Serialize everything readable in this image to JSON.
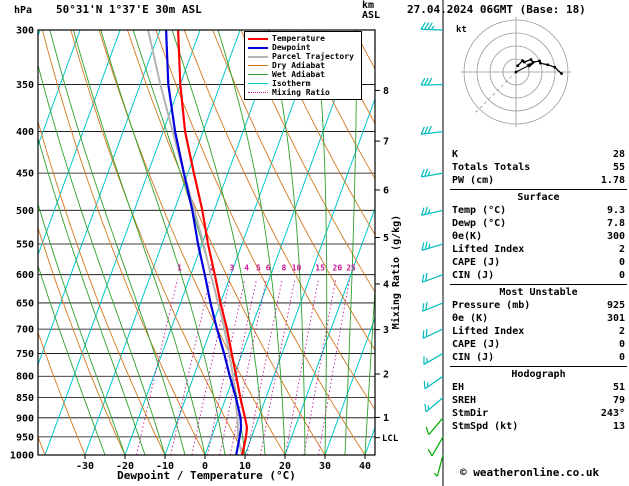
{
  "header": {
    "left_unit": "hPa",
    "station": "50°31'N 1°37'E 30m ASL",
    "datetime": "27.04.2024 06GMT (Base: 18)",
    "right_unit_line1": "km",
    "right_unit_line2": "ASL"
  },
  "legend": {
    "items": [
      {
        "label": "Temperature",
        "color": "#ff0000",
        "width": 2,
        "dash": false
      },
      {
        "label": "Dewpoint",
        "color": "#0000dd",
        "width": 2,
        "dash": false
      },
      {
        "label": "Parcel Trajectory",
        "color": "#b4b4b4",
        "width": 2,
        "dash": false
      },
      {
        "label": "Dry Adiabat",
        "color": "#d2791e",
        "width": 1,
        "dash": false
      },
      {
        "label": "Wet Adiabat",
        "color": "#2da02d",
        "width": 1,
        "dash": false
      },
      {
        "label": "Isotherm",
        "color": "#00c8c8",
        "width": 1,
        "dash": false
      },
      {
        "label": "Mixing Ratio",
        "color": "#c81696",
        "width": 1,
        "dash": true
      }
    ]
  },
  "chart_data": {
    "type": "line",
    "title": "Skew-T log-P sounding",
    "x_axis": {
      "label": "Dewpoint / Temperature (°C)",
      "ticks": [
        -30,
        -20,
        -10,
        0,
        10,
        20,
        30,
        40
      ]
    },
    "y_axis": {
      "label": "hPa",
      "scale": "log",
      "ticks": [
        300,
        350,
        400,
        450,
        500,
        550,
        600,
        650,
        700,
        750,
        800,
        850,
        900,
        950,
        1000
      ]
    },
    "km_asl_ticks": [
      {
        "km": 1,
        "p": 899
      },
      {
        "km": 2,
        "p": 795
      },
      {
        "km": 3,
        "p": 701
      },
      {
        "km": 4,
        "p": 616
      },
      {
        "km": 5,
        "p": 540
      },
      {
        "km": 6,
        "p": 472
      },
      {
        "km": 7,
        "p": 411
      },
      {
        "km": 8,
        "p": 356
      }
    ],
    "lcl": {
      "label": "LCL",
      "p": 952
    },
    "mixing_ratio_axis_label": "Mixing Ratio (g/kg)",
    "mixing_ratio_lines": [
      1,
      2,
      3,
      4,
      5,
      6,
      8,
      10,
      15,
      20,
      25
    ],
    "isotherms_c": [
      -80,
      -70,
      -60,
      -50,
      -40,
      -30,
      -20,
      -10,
      0,
      10,
      20,
      30,
      40
    ],
    "dry_adiabats_c": [
      -40,
      -30,
      -20,
      -10,
      0,
      10,
      20,
      30,
      40,
      50,
      60,
      70,
      80,
      90,
      100,
      110,
      120
    ],
    "wet_adiabats_c": [
      -25,
      -20,
      -15,
      -10,
      -5,
      0,
      5,
      10,
      15,
      20,
      25,
      30,
      35,
      40
    ],
    "series": [
      {
        "name": "Temperature",
        "color": "#ff0000",
        "width": 2.2,
        "points": [
          [
            1000,
            9.3
          ],
          [
            950,
            8.6
          ],
          [
            925,
            8.0
          ],
          [
            900,
            6.6
          ],
          [
            850,
            3.6
          ],
          [
            800,
            0.6
          ],
          [
            750,
            -2.6
          ],
          [
            700,
            -6.0
          ],
          [
            650,
            -10.0
          ],
          [
            600,
            -14.0
          ],
          [
            550,
            -18.5
          ],
          [
            500,
            -23.0
          ],
          [
            450,
            -28.5
          ],
          [
            400,
            -34.5
          ],
          [
            350,
            -40.0
          ],
          [
            300,
            -45.5
          ]
        ]
      },
      {
        "name": "Dewpoint",
        "color": "#0000dd",
        "width": 2.2,
        "points": [
          [
            1000,
            7.8
          ],
          [
            950,
            7.0
          ],
          [
            925,
            6.5
          ],
          [
            900,
            5.5
          ],
          [
            850,
            2.5
          ],
          [
            800,
            -1.0
          ],
          [
            750,
            -4.5
          ],
          [
            700,
            -8.5
          ],
          [
            650,
            -12.5
          ],
          [
            600,
            -16.5
          ],
          [
            550,
            -21.0
          ],
          [
            500,
            -25.5
          ],
          [
            450,
            -31.0
          ],
          [
            400,
            -37.0
          ],
          [
            350,
            -43.0
          ],
          [
            300,
            -48.5
          ]
        ]
      },
      {
        "name": "Parcel Trajectory",
        "color": "#b4b4b4",
        "width": 2,
        "points": [
          [
            1000,
            9.3
          ],
          [
            975,
            7.9
          ],
          [
            950,
            6.6
          ],
          [
            925,
            5.7
          ],
          [
            900,
            4.7
          ],
          [
            850,
            2.4
          ],
          [
            800,
            -0.2
          ],
          [
            750,
            -3.2
          ],
          [
            700,
            -6.6
          ],
          [
            650,
            -10.6
          ],
          [
            600,
            -15.0
          ],
          [
            550,
            -19.6
          ],
          [
            500,
            -25.0
          ],
          [
            450,
            -31.0
          ],
          [
            400,
            -37.6
          ],
          [
            350,
            -45.0
          ],
          [
            300,
            -53.0
          ]
        ]
      }
    ],
    "wind_barbs": [
      {
        "p": 1000,
        "dir": 195,
        "spd": 5,
        "color": "#00aa00"
      },
      {
        "p": 950,
        "dir": 210,
        "spd": 10,
        "color": "#00aa00"
      },
      {
        "p": 900,
        "dir": 220,
        "spd": 10,
        "color": "#00aa00"
      },
      {
        "p": 850,
        "dir": 230,
        "spd": 15,
        "color": "#00bbbb"
      },
      {
        "p": 800,
        "dir": 235,
        "spd": 15,
        "color": "#00bbbb"
      },
      {
        "p": 750,
        "dir": 240,
        "spd": 15,
        "color": "#00bbbb"
      },
      {
        "p": 700,
        "dir": 245,
        "spd": 20,
        "color": "#00bbbb"
      },
      {
        "p": 650,
        "dir": 248,
        "spd": 20,
        "color": "#00bbbb"
      },
      {
        "p": 600,
        "dir": 250,
        "spd": 20,
        "color": "#00bbbb"
      },
      {
        "p": 550,
        "dir": 253,
        "spd": 25,
        "color": "#00bbbb"
      },
      {
        "p": 500,
        "dir": 257,
        "spd": 25,
        "color": "#00bbbb"
      },
      {
        "p": 450,
        "dir": 260,
        "spd": 25,
        "color": "#00bbbb"
      },
      {
        "p": 400,
        "dir": 263,
        "spd": 30,
        "color": "#00bbbb"
      },
      {
        "p": 350,
        "dir": 268,
        "spd": 30,
        "color": "#00bbbb"
      },
      {
        "p": 300,
        "dir": 272,
        "spd": 35,
        "color": "#00bbbb"
      }
    ],
    "hodograph": {
      "unit_label": "kt",
      "ring_step_kt": 10,
      "rings": 4,
      "trace_kt": [
        [
          1.3,
          4.8
        ],
        [
          5.0,
          8.7
        ],
        [
          6.4,
          7.7
        ],
        [
          11.5,
          9.6
        ],
        [
          13.0,
          7.5
        ],
        [
          18.1,
          8.5
        ],
        [
          18.8,
          6.8
        ],
        [
          24.4,
          5.6
        ],
        [
          29.8,
          3.7
        ],
        [
          35.0,
          -1.2
        ]
      ],
      "storm_motion": {
        "dir": 243,
        "spd": 13
      }
    }
  },
  "panel": {
    "sections": [
      {
        "title": null,
        "rows": [
          [
            "K",
            "28"
          ],
          [
            "Totals Totals",
            "55"
          ],
          [
            "PW (cm)",
            "1.78"
          ]
        ]
      },
      {
        "title": "Surface",
        "rows": [
          [
            "Temp (°C)",
            "9.3"
          ],
          [
            "Dewp (°C)",
            "7.8"
          ],
          [
            "θe(K)",
            "300"
          ],
          [
            "Lifted Index",
            "2"
          ],
          [
            "CAPE (J)",
            "0"
          ],
          [
            "CIN (J)",
            "0"
          ]
        ]
      },
      {
        "title": "Most Unstable",
        "rows": [
          [
            "Pressure (mb)",
            "925"
          ],
          [
            "θe (K)",
            "301"
          ],
          [
            "Lifted Index",
            "2"
          ],
          [
            "CAPE (J)",
            "0"
          ],
          [
            "CIN (J)",
            "0"
          ]
        ]
      },
      {
        "title": "Hodograph",
        "rows": [
          [
            "EH",
            "51"
          ],
          [
            "SREH",
            "79"
          ],
          [
            "StmDir",
            "243°"
          ],
          [
            "StmSpd (kt)",
            "13"
          ]
        ]
      }
    ]
  },
  "footer": {
    "copyright": "© weatheronline.co.uk"
  }
}
